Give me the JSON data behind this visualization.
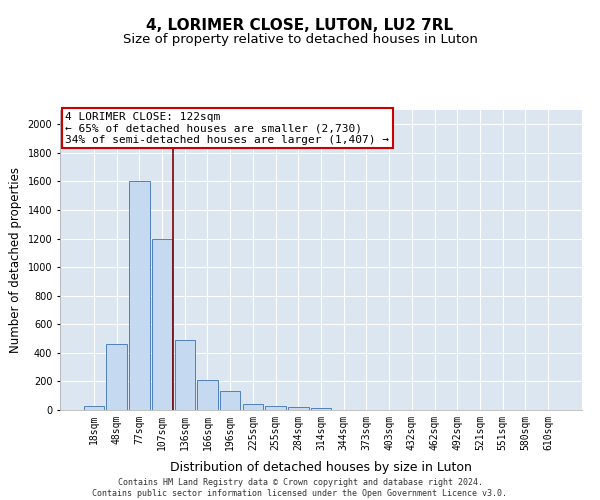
{
  "title": "4, LORIMER CLOSE, LUTON, LU2 7RL",
  "subtitle": "Size of property relative to detached houses in Luton",
  "xlabel": "Distribution of detached houses by size in Luton",
  "ylabel": "Number of detached properties",
  "bar_labels": [
    "18sqm",
    "48sqm",
    "77sqm",
    "107sqm",
    "136sqm",
    "166sqm",
    "196sqm",
    "225sqm",
    "255sqm",
    "284sqm",
    "314sqm",
    "344sqm",
    "373sqm",
    "403sqm",
    "432sqm",
    "462sqm",
    "492sqm",
    "521sqm",
    "551sqm",
    "580sqm",
    "610sqm"
  ],
  "bar_values": [
    30,
    460,
    1600,
    1200,
    490,
    210,
    130,
    45,
    30,
    20,
    15,
    0,
    0,
    0,
    0,
    0,
    0,
    0,
    0,
    0,
    0
  ],
  "bar_color": "#c5d9f1",
  "bar_edge_color": "#4f81bd",
  "background_color": "#dce6f1",
  "annotation_line1": "4 LORIMER CLOSE: 122sqm",
  "annotation_line2": "← 65% of detached houses are smaller (2,730)",
  "annotation_line3": "34% of semi-detached houses are larger (1,407) →",
  "annotation_box_color": "#ffffff",
  "annotation_box_edgecolor": "#cc0000",
  "red_line_x": 3.5,
  "ylim": [
    0,
    2100
  ],
  "yticks": [
    0,
    200,
    400,
    600,
    800,
    1000,
    1200,
    1400,
    1600,
    1800,
    2000
  ],
  "footer": "Contains HM Land Registry data © Crown copyright and database right 2024.\nContains public sector information licensed under the Open Government Licence v3.0.",
  "title_fontsize": 11,
  "subtitle_fontsize": 9.5,
  "xlabel_fontsize": 9,
  "ylabel_fontsize": 8.5,
  "tick_fontsize": 7,
  "annotation_fontsize": 8,
  "footer_fontsize": 6
}
